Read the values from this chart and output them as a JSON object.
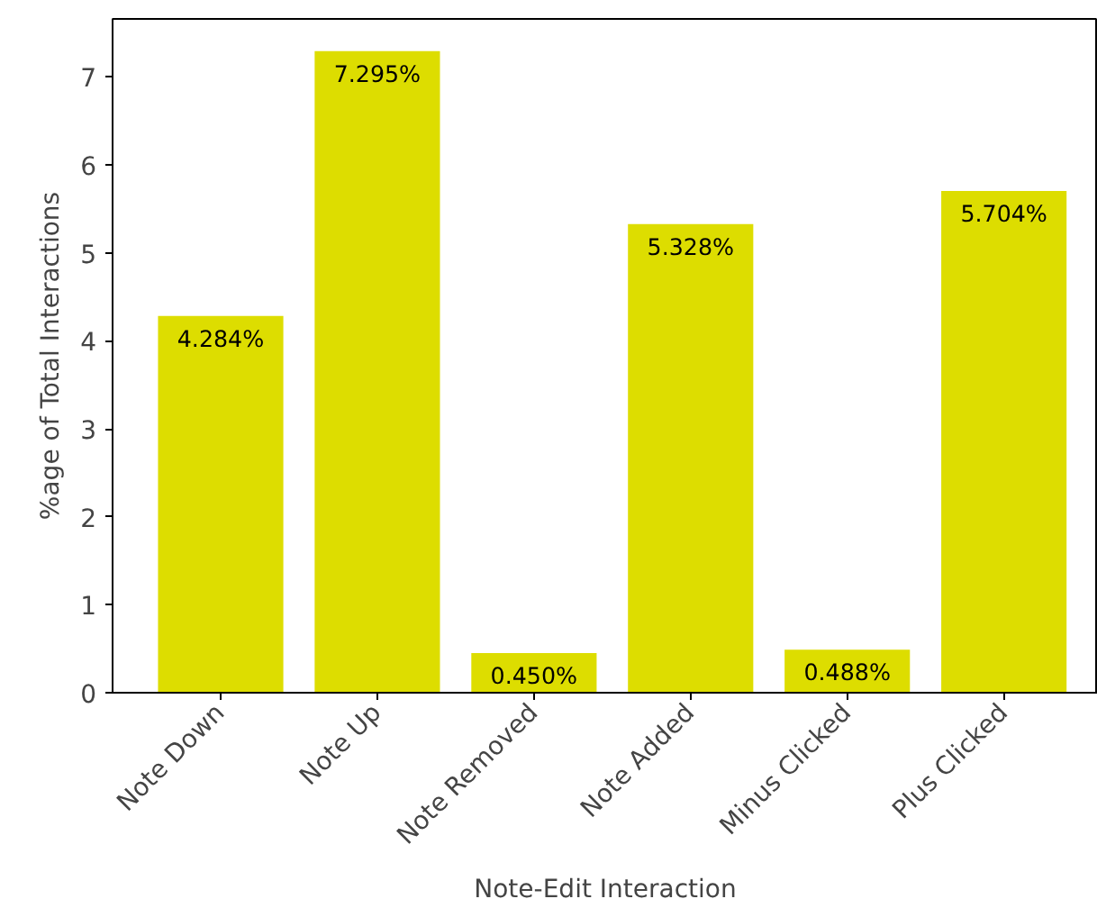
{
  "chart_data": {
    "type": "bar",
    "xlabel": "Note-Edit Interaction",
    "ylabel": "%age of Total Interactions",
    "categories": [
      "Note Down",
      "Note Up",
      "Note Removed",
      "Note Added",
      "Minus Clicked",
      "Plus Clicked"
    ],
    "values": [
      4.284,
      7.295,
      0.45,
      5.328,
      0.488,
      5.704
    ],
    "value_labels": [
      "4.284%",
      "7.295%",
      "0.450%",
      "5.328%",
      "0.488%",
      "5.704%"
    ],
    "color": "#dddd00",
    "ylim": [
      0,
      7.66
    ],
    "yticks": [
      0,
      1,
      2,
      3,
      4,
      5,
      6,
      7
    ],
    "grid": false
  }
}
